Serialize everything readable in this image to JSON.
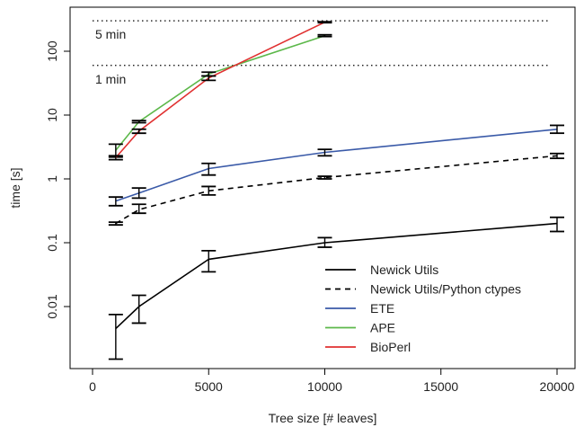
{
  "chart_data": {
    "type": "line",
    "title": "",
    "xlabel": "Tree size [# leaves]",
    "ylabel": "time [s]",
    "xlim": [
      0,
      20000
    ],
    "x_scale": "linear",
    "y_scale": "log",
    "xticks": [
      0,
      5000,
      10000,
      15000,
      20000
    ],
    "yticks": [
      {
        "value": 0.01,
        "label": "0.01"
      },
      {
        "value": 0.1,
        "label": "0.1"
      },
      {
        "value": 1,
        "label": "1"
      },
      {
        "value": 10,
        "label": "10"
      },
      {
        "value": 100,
        "label": "100"
      }
    ],
    "reference_lines": [
      {
        "label": "5 min",
        "value": 300
      },
      {
        "label": "1 min",
        "value": 60
      }
    ],
    "legend_position": "bottom-right",
    "series": [
      {
        "name": "Newick Utils",
        "color": "#000000",
        "dash": "solid",
        "points": [
          {
            "x": 1000,
            "y": 0.0045,
            "lo": 0.0015,
            "hi": 0.0075
          },
          {
            "x": 2000,
            "y": 0.01,
            "lo": 0.0055,
            "hi": 0.015
          },
          {
            "x": 5000,
            "y": 0.055,
            "lo": 0.035,
            "hi": 0.075
          },
          {
            "x": 10000,
            "y": 0.1,
            "lo": 0.085,
            "hi": 0.12
          },
          {
            "x": 20000,
            "y": 0.2,
            "lo": 0.15,
            "hi": 0.25
          }
        ]
      },
      {
        "name": "Newick Utils/Python ctypes",
        "color": "#000000",
        "dash": "dashed",
        "points": [
          {
            "x": 1000,
            "y": 0.2,
            "lo": 0.19,
            "hi": 0.21
          },
          {
            "x": 2000,
            "y": 0.33,
            "lo": 0.29,
            "hi": 0.4
          },
          {
            "x": 5000,
            "y": 0.65,
            "lo": 0.56,
            "hi": 0.76
          },
          {
            "x": 10000,
            "y": 1.05,
            "lo": 1.0,
            "hi": 1.1
          },
          {
            "x": 20000,
            "y": 2.3,
            "lo": 2.1,
            "hi": 2.5
          }
        ]
      },
      {
        "name": "ETE",
        "color": "#3a5aa8",
        "dash": "solid",
        "points": [
          {
            "x": 1000,
            "y": 0.45,
            "lo": 0.38,
            "hi": 0.52
          },
          {
            "x": 2000,
            "y": 0.6,
            "lo": 0.5,
            "hi": 0.72
          },
          {
            "x": 5000,
            "y": 1.45,
            "lo": 1.15,
            "hi": 1.75
          },
          {
            "x": 10000,
            "y": 2.6,
            "lo": 2.3,
            "hi": 2.9
          },
          {
            "x": 20000,
            "y": 6.0,
            "lo": 5.2,
            "hi": 6.9
          }
        ]
      },
      {
        "name": "APE",
        "color": "#5cb84a",
        "dash": "solid",
        "points": [
          {
            "x": 1000,
            "y": 2.8,
            "lo": 2.2,
            "hi": 3.5
          },
          {
            "x": 2000,
            "y": 7.9,
            "lo": 7.6,
            "hi": 8.2
          },
          {
            "x": 5000,
            "y": 44,
            "lo": 41,
            "hi": 47
          },
          {
            "x": 10000,
            "y": 175,
            "lo": 170,
            "hi": 181
          }
        ]
      },
      {
        "name": "BioPerl",
        "color": "#e03030",
        "dash": "solid",
        "points": [
          {
            "x": 1000,
            "y": 2.15,
            "lo": 2.0,
            "hi": 2.3
          },
          {
            "x": 2000,
            "y": 5.6,
            "lo": 5.2,
            "hi": 6.0
          },
          {
            "x": 5000,
            "y": 38,
            "lo": 35,
            "hi": 41
          },
          {
            "x": 10000,
            "y": 285,
            "lo": 280,
            "hi": 290
          }
        ]
      }
    ]
  }
}
